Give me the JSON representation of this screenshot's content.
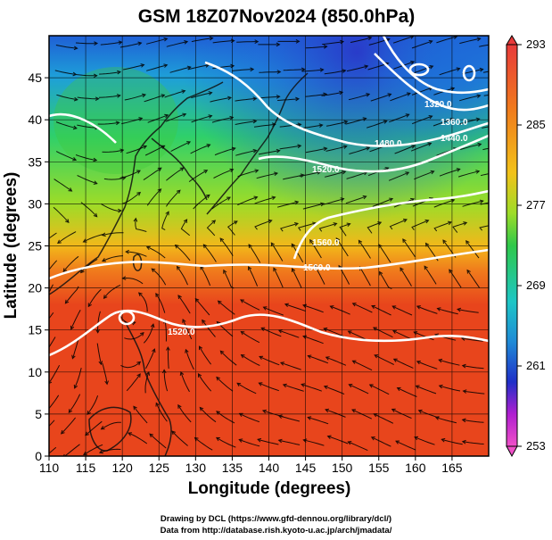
{
  "title": "GSM 18Z07Nov2024 (850.0hPa)",
  "xlabel": "Longitude (degrees)",
  "ylabel": "Latitude  (degrees)",
  "x_ticks": [
    "110",
    "115",
    "120",
    "125",
    "130",
    "135",
    "140",
    "145",
    "150",
    "155",
    "160",
    "165"
  ],
  "y_ticks": [
    "0",
    "5",
    "10",
    "15",
    "20",
    "25",
    "30",
    "35",
    "40",
    "45"
  ],
  "colorbar_ticks": [
    "293",
    "285",
    "277",
    "269",
    "261",
    "253"
  ],
  "contour_labels": [
    "1520.0",
    "1560.0",
    "1560.0",
    "1520.0",
    "1320.0",
    "1360.0",
    "1440.0",
    "1480.0"
  ],
  "credits": {
    "line1": "Drawing by DCL (https://www.gfd-dennou.org/library/dcl/)",
    "line2": "Data from http://database.rish.kyoto-u.ac.jp/arch/jmadata/"
  },
  "chart_data": {
    "type": "heatmap",
    "title": "GSM 18Z07Nov2024 (850.0hPa)",
    "xlabel": "Longitude (degrees)",
    "ylabel": "Latitude  (degrees)",
    "xlim": [
      110,
      170
    ],
    "ylim": [
      0,
      50
    ],
    "colorbar_range": [
      253,
      293
    ],
    "colorbar_ticks": [
      293,
      285,
      277,
      269,
      261,
      253
    ],
    "colors": {
      "warm": "#e8451c",
      "mid_warm": "#f5a21b",
      "green": "#49c12e",
      "cyan": "#1ec6c6",
      "blue": "#1f5fd6",
      "violet": "#b01fd0",
      "magenta": "#f050c8",
      "contour": "#ffffff",
      "streamline": "#000000"
    }
  }
}
